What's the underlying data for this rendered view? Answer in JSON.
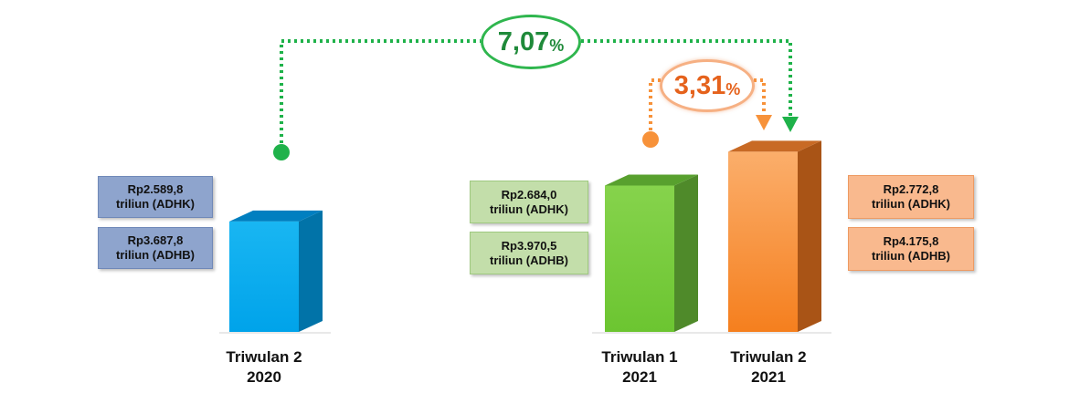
{
  "chart_data": {
    "type": "bar",
    "categories": [
      {
        "line1": "Triwulan 2",
        "line2": "2020"
      },
      {
        "line1": "Triwulan 1",
        "line2": "2021"
      },
      {
        "line1": "Triwulan 2",
        "line2": "2021"
      }
    ],
    "values_adhk": [
      2589.8,
      2684.0,
      2772.8
    ],
    "values_adhb": [
      3687.8,
      3970.5,
      4175.8
    ],
    "unit": "triliun",
    "labels": [
      {
        "adhk_value": "Rp2.589,8",
        "adhk_unit": "triliun (ADHK)",
        "adhb_value": "Rp3.687,8",
        "adhb_unit": "triliun (ADHB)"
      },
      {
        "adhk_value": "Rp2.684,0",
        "adhk_unit": "triliun (ADHK)",
        "adhb_value": "Rp3.970,5",
        "adhb_unit": "triliun (ADHB)"
      },
      {
        "adhk_value": "Rp2.772,8",
        "adhk_unit": "triliun (ADHK)",
        "adhb_value": "Rp4.175,8",
        "adhb_unit": "triliun (ADHB)"
      }
    ],
    "growth": [
      {
        "from": 0,
        "to": 2,
        "value": "7,07",
        "unit": "%",
        "color": "#1fb24a"
      },
      {
        "from": 1,
        "to": 2,
        "value": "3,31",
        "unit": "%",
        "color": "#f7923a"
      }
    ],
    "colors": {
      "bar1": "#00aeef",
      "bar2": "#7ccf3f",
      "bar3": "#f7923a"
    },
    "ylim": [
      2300,
      2800
    ]
  }
}
